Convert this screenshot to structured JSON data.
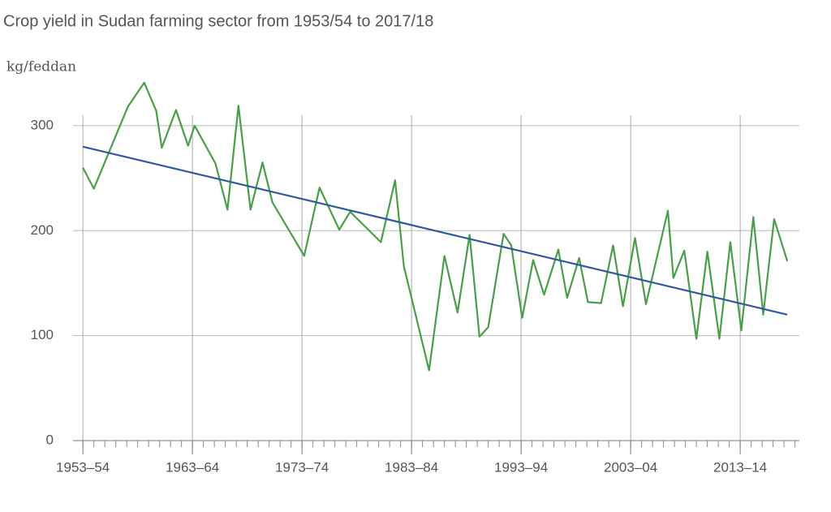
{
  "chart_data": {
    "type": "line",
    "title": "Crop yield in Sudan farming sector from 1953/54 to 2017/18",
    "y_axis_label": "kg/feddan",
    "x": [
      1953.0,
      1954.0,
      1957.1,
      1958.6,
      1959.7,
      1960.2,
      1961.5,
      1962.6,
      1963.2,
      1965.1,
      1966.2,
      1967.2,
      1968.3,
      1969.4,
      1970.3,
      1973.2,
      1974.6,
      1976.4,
      1977.4,
      1980.2,
      1981.5,
      1982.3,
      1984.6,
      1986.0,
      1987.2,
      1988.3,
      1989.2,
      1990.0,
      1991.4,
      1992.1,
      1993.1,
      1994.1,
      1995.1,
      1996.4,
      1997.2,
      1998.3,
      1999.1,
      2000.3,
      2001.4,
      2002.3,
      2003.4,
      2004.4,
      2006.4,
      2006.9,
      2007.9,
      2009.0,
      2010.0,
      2011.1,
      2012.1,
      2013.1,
      2014.2,
      2015.1,
      2016.1,
      2017.3
    ],
    "series": [
      {
        "color": "#4a9e4a",
        "values": [
          260,
          240,
          318,
          341,
          314,
          279,
          315,
          281,
          300,
          264,
          220,
          319,
          220,
          265,
          227,
          176,
          241,
          201,
          218,
          189,
          248,
          166,
          67,
          176,
          122,
          196,
          99,
          108,
          197,
          186,
          117,
          172,
          139,
          182,
          136,
          174,
          132,
          131,
          186,
          128,
          193,
          130,
          219,
          155,
          181,
          97,
          180,
          97,
          189,
          105,
          213,
          120,
          211,
          171
        ]
      },
      {
        "color": "#2f5a9e",
        "x": [
          1953.0,
          2017.3
        ],
        "values": [
          280,
          120
        ]
      }
    ],
    "xlim": [
      1952.1,
      2018.4
    ],
    "xticks": [
      {
        "value": 1953,
        "label": "1953–54"
      },
      {
        "value": 1963,
        "label": "1963–64"
      },
      {
        "value": 1973,
        "label": "1973–74"
      },
      {
        "value": 1983,
        "label": "1983–84"
      },
      {
        "value": 1993,
        "label": "1993–94"
      },
      {
        "value": 2003,
        "label": "2003–04"
      },
      {
        "value": 2013,
        "label": "2013–14"
      }
    ],
    "minor_tick_step": 1,
    "ylim": [
      0,
      310
    ],
    "yticks": [
      0,
      100,
      200,
      300
    ],
    "grid": true
  }
}
